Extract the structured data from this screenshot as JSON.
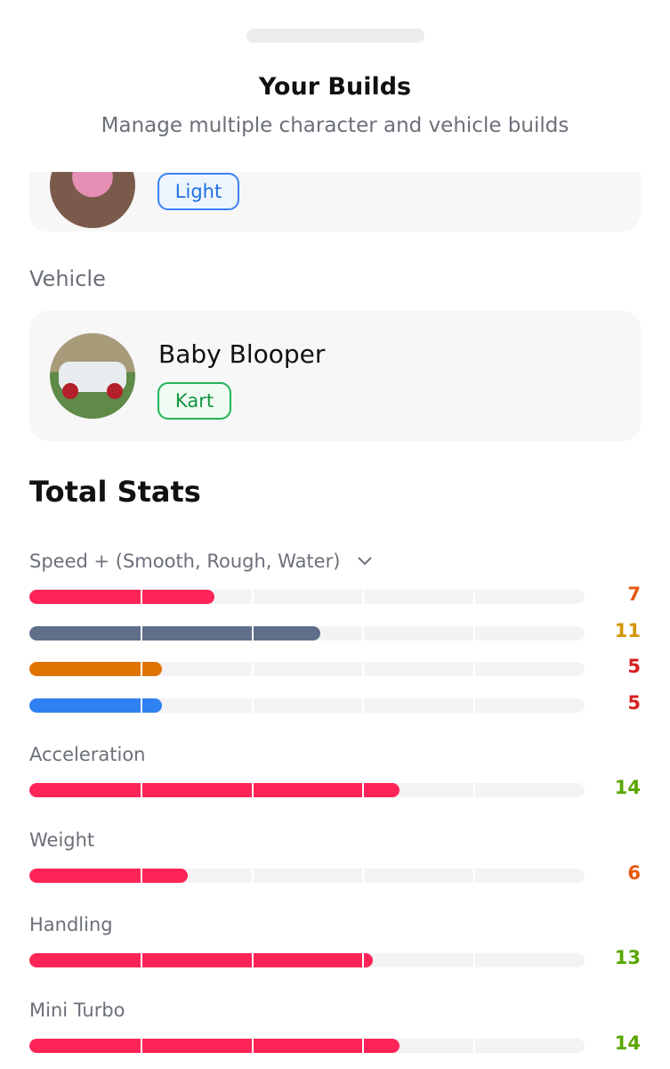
{
  "header": {
    "title": "Your Builds",
    "subtitle": "Manage multiple character and vehicle builds"
  },
  "character": {
    "class": "Light"
  },
  "vehicle": {
    "label": "Vehicle",
    "name": "Baby Blooper",
    "class": "Kart"
  },
  "stats": {
    "title": "Total Stats",
    "xlim": [
      0,
      21
    ],
    "groups": [
      {
        "label": "Speed + (Smooth, Rough, Water)",
        "bars": [
          {
            "value": 7,
            "color": "#ff2457",
            "value_color": "#e8590c"
          },
          {
            "value": 11,
            "color": "#5f6f8a",
            "value_color": "#d49500"
          },
          {
            "value": 5,
            "color": "#e07400",
            "value_color": "#d61f1f"
          },
          {
            "value": 5,
            "color": "#2f80f0",
            "value_color": "#d61f1f"
          }
        ]
      },
      {
        "label": "Acceleration",
        "bars": [
          {
            "value": 14,
            "color": "#ff2457",
            "value_color": "#5aa600"
          }
        ]
      },
      {
        "label": "Weight",
        "bars": [
          {
            "value": 6,
            "color": "#ff2457",
            "value_color": "#e8590c"
          }
        ]
      },
      {
        "label": "Handling",
        "bars": [
          {
            "value": 13,
            "color": "#ff2457",
            "value_color": "#5aa600"
          }
        ]
      },
      {
        "label": "Mini Turbo",
        "bars": [
          {
            "value": 14,
            "color": "#ff2457",
            "value_color": "#5aa600"
          }
        ]
      }
    ]
  }
}
